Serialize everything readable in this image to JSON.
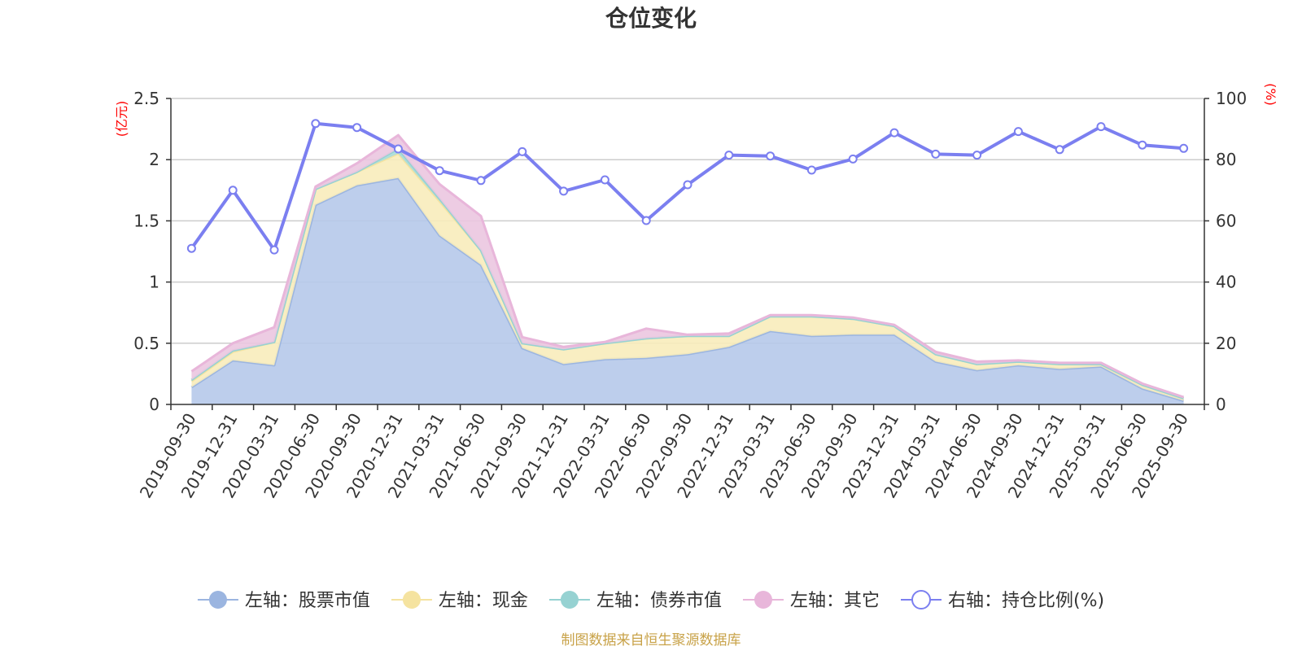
{
  "chart_data": {
    "type": "area",
    "title": "仓位变化",
    "left_unit": "(亿元)",
    "right_unit": "(%)",
    "x": [
      "2019-09-30",
      "2019-12-31",
      "2020-03-31",
      "2020-06-30",
      "2020-09-30",
      "2020-12-31",
      "2021-03-31",
      "2021-06-30",
      "2021-09-30",
      "2021-12-31",
      "2022-03-31",
      "2022-06-30",
      "2022-09-30",
      "2022-12-31",
      "2023-03-31",
      "2023-06-30",
      "2023-09-30",
      "2023-12-31",
      "2024-03-31",
      "2024-06-30",
      "2024-09-30",
      "2024-12-31",
      "2025-03-31",
      "2025-06-30",
      "2025-09-30"
    ],
    "y_left": {
      "min": 0,
      "max": 2.5,
      "ticks": [
        "0",
        "0.5",
        "1",
        "1.5",
        "2",
        "2.5"
      ]
    },
    "y_right": {
      "min": 0,
      "max": 100,
      "ticks": [
        "0",
        "20",
        "40",
        "60",
        "80",
        "100"
      ]
    },
    "stacked_series": [
      {
        "name": "左轴：股票市值",
        "color": "#9bb5e0",
        "fill": "#b6c9ea",
        "values": [
          0.14,
          0.36,
          0.32,
          1.63,
          1.79,
          1.85,
          1.38,
          1.14,
          0.46,
          0.33,
          0.37,
          0.38,
          0.41,
          0.47,
          0.6,
          0.56,
          0.57,
          0.57,
          0.35,
          0.28,
          0.32,
          0.29,
          0.31,
          0.13,
          0.03
        ]
      },
      {
        "name": "左轴：现金",
        "color": "#f5e3a0",
        "fill": "#f8ecbb",
        "values": [
          0.05,
          0.07,
          0.19,
          0.13,
          0.11,
          0.2,
          0.28,
          0.12,
          0.04,
          0.12,
          0.13,
          0.16,
          0.15,
          0.09,
          0.12,
          0.16,
          0.13,
          0.07,
          0.06,
          0.05,
          0.03,
          0.04,
          0.02,
          0.03,
          0.02
        ]
      },
      {
        "name": "左轴：债券市值",
        "color": "#96d2d2",
        "fill": "#a8dcdc",
        "values": [
          0.01,
          0.01,
          0,
          0,
          0,
          0.04,
          0.02,
          0,
          0,
          0,
          0,
          0,
          0,
          0,
          0,
          0,
          0,
          0,
          0,
          0,
          0,
          0,
          0,
          0,
          0
        ]
      },
      {
        "name": "左轴：其它",
        "color": "#e8b6da",
        "fill": "#ebc6e0",
        "values": [
          0.07,
          0.06,
          0.12,
          0.02,
          0.07,
          0.11,
          0.12,
          0.28,
          0.05,
          0.02,
          0.01,
          0.08,
          0.01,
          0.02,
          0.01,
          0.01,
          0.01,
          0.01,
          0.02,
          0.02,
          0.01,
          0.01,
          0.01,
          0.01,
          0.01
        ]
      }
    ],
    "line_series": {
      "name": "右轴：持仓比例(%)",
      "color": "#7b7ff0",
      "values": [
        51,
        70,
        50.5,
        91.8,
        90.5,
        83.5,
        76.4,
        73.2,
        82.6,
        69.7,
        73.4,
        60.1,
        71.8,
        81.5,
        81.2,
        76.6,
        80.2,
        88.8,
        81.8,
        81.5,
        89.2,
        83.3,
        90.8,
        84.8,
        83.7
      ]
    },
    "grid": true,
    "legend_position": "bottom-center"
  },
  "source_note": "制图数据来自恒生聚源数据库"
}
